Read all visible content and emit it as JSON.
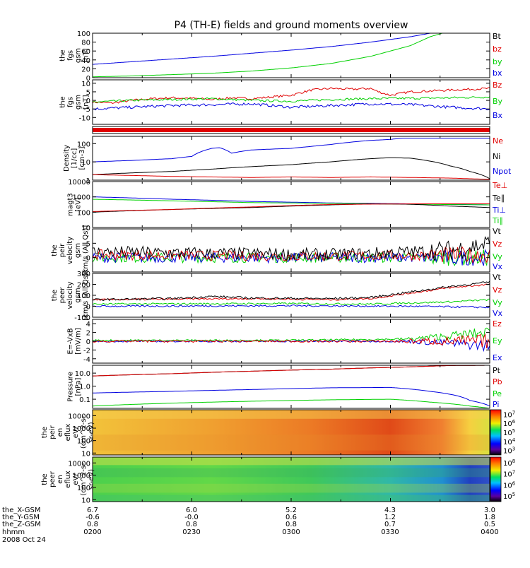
{
  "title": "P4 (TH-E) fields and ground moments overview",
  "footer": {
    "rows": [
      {
        "label": "the_X-GSM",
        "values": [
          "6.7",
          "6.0",
          "5.2",
          "4.3",
          "3.0"
        ]
      },
      {
        "label": "the_Y-GSM",
        "values": [
          "-0.6",
          "-0.0",
          "0.6",
          "1.2",
          "1.8"
        ]
      },
      {
        "label": "the_Z-GSM",
        "values": [
          "0.8",
          "0.8",
          "0.8",
          "0.7",
          "0.5"
        ]
      },
      {
        "label": "hhmm",
        "values": [
          "0200",
          "0230",
          "0300",
          "0330",
          "0400"
        ]
      }
    ],
    "date": "2008 Oct 24"
  },
  "colors": {
    "black": "#000000",
    "red": "#e00000",
    "green": "#00d000",
    "blue": "#0000e0"
  },
  "chart_data": [
    {
      "type": "line",
      "ylabel": [
        "the",
        "fgs",
        "gsm",
        "[nT]"
      ],
      "ylim": [
        0,
        100
      ],
      "yticks": [
        "0",
        "20",
        "40",
        "60",
        "80",
        "100"
      ],
      "legend": [
        {
          "text": "Bt",
          "color": "black"
        },
        {
          "text": "bz",
          "color": "red"
        },
        {
          "text": "by",
          "color": "green"
        },
        {
          "text": "bx",
          "color": "blue"
        }
      ],
      "series": [
        {
          "color": "blue",
          "x": [
            0,
            0.1,
            0.2,
            0.3,
            0.4,
            0.5,
            0.6,
            0.7,
            0.8,
            0.85,
            0.9,
            1.0
          ],
          "y": [
            30,
            36,
            42,
            48,
            55,
            62,
            70,
            80,
            92,
            100,
            100,
            100
          ]
        },
        {
          "color": "green",
          "x": [
            0,
            0.1,
            0.2,
            0.3,
            0.4,
            0.5,
            0.6,
            0.7,
            0.8,
            0.85,
            0.88
          ],
          "y": [
            2,
            4,
            7,
            10,
            15,
            22,
            32,
            48,
            72,
            92,
            100
          ]
        }
      ]
    },
    {
      "type": "line",
      "ylabel": [
        "the",
        "fgs",
        "gsm",
        "[nT]"
      ],
      "ylim": [
        -14,
        12
      ],
      "yticks": [
        "-10",
        "-5",
        "0",
        "5",
        "10"
      ],
      "ytick_values": [
        -10,
        -5,
        0,
        5,
        10
      ],
      "legend": [
        {
          "text": "Bz",
          "color": "red"
        },
        {
          "text": "By",
          "color": "green"
        },
        {
          "text": "Bx",
          "color": "blue"
        }
      ],
      "series": [
        {
          "color": "red",
          "x": [
            0,
            0.05,
            0.1,
            0.15,
            0.2,
            0.25,
            0.3,
            0.35,
            0.4,
            0.45,
            0.5,
            0.55,
            0.6,
            0.65,
            0.7,
            0.72,
            0.75,
            0.8,
            0.85,
            0.9,
            0.95,
            1.0
          ],
          "y": [
            -1,
            -1.5,
            0,
            1,
            1.5,
            1.2,
            0.5,
            1.5,
            1,
            2,
            3,
            6,
            7,
            6.5,
            7,
            5,
            3,
            5,
            5.5,
            6,
            6.5,
            7
          ]
        },
        {
          "color": "green",
          "x": [
            0,
            0.1,
            0.2,
            0.3,
            0.4,
            0.5,
            0.6,
            0.7,
            0.8,
            0.9,
            1.0
          ],
          "y": [
            -1,
            0,
            0.5,
            1,
            0,
            -0.5,
            0.5,
            1,
            1.2,
            1.5,
            2
          ]
        },
        {
          "color": "blue",
          "x": [
            0,
            0.1,
            0.2,
            0.3,
            0.4,
            0.5,
            0.6,
            0.7,
            0.8,
            0.9,
            1.0
          ],
          "y": [
            -5,
            -4,
            -3,
            -2.5,
            -2,
            -4,
            -3,
            -2,
            -2.5,
            -4,
            -5
          ]
        }
      ],
      "noise": 0.8
    },
    {
      "type": "bar",
      "ylabel": [],
      "band_color": "red"
    },
    {
      "type": "line",
      "scale": "log",
      "ylabel": [
        "Density",
        "[1/cc]",
        "[cm-3]"
      ],
      "ylim": [
        1,
        250
      ],
      "yticks": [
        "1",
        "10",
        "100"
      ],
      "ytick_values": [
        1,
        10,
        100
      ],
      "legend": [
        {
          "text": "Ne",
          "color": "red"
        },
        {
          "text": "Ni",
          "color": "black"
        },
        {
          "text": "Npot",
          "color": "blue"
        }
      ],
      "series": [
        {
          "color": "blue",
          "x": [
            0,
            0.1,
            0.2,
            0.25,
            0.3,
            0.32,
            0.35,
            0.4,
            0.45,
            0.5,
            0.55,
            0.6,
            0.65,
            0.7,
            0.75,
            0.78
          ],
          "y": [
            10,
            12,
            15,
            20,
            55,
            60,
            30,
            45,
            50,
            55,
            70,
            90,
            120,
            150,
            170,
            200
          ]
        },
        {
          "color": "black",
          "x": [
            0,
            0.1,
            0.2,
            0.3,
            0.4,
            0.5,
            0.6,
            0.7,
            0.75,
            0.8,
            0.85,
            0.9,
            0.95,
            1.0
          ],
          "y": [
            2,
            2.5,
            3,
            4,
            5.5,
            7,
            10,
            15,
            17,
            16,
            11,
            6,
            3,
            1.2
          ]
        },
        {
          "color": "red",
          "x": [
            0,
            0.1,
            0.2,
            0.3,
            0.4,
            0.5,
            0.6,
            0.7,
            0.8,
            0.9,
            1.0
          ],
          "y": [
            2,
            1.8,
            1.6,
            1.5,
            1.4,
            1.5,
            1.4,
            1.5,
            1.4,
            1.3,
            1.1
          ]
        }
      ]
    },
    {
      "type": "line",
      "scale": "log",
      "ylabel": [
        "magt3",
        "[eV]"
      ],
      "ylim": [
        10,
        10000
      ],
      "yticks": [
        "10",
        "100",
        "1000",
        "10000"
      ],
      "ytick_values": [
        10,
        100,
        1000,
        10000
      ],
      "legend": [
        {
          "text": "Te⊥",
          "color": "red"
        },
        {
          "text": "Te∥",
          "color": "black"
        },
        {
          "text": "Ti⊥",
          "color": "blue"
        },
        {
          "text": "Ti∥",
          "color": "green"
        }
      ],
      "series": [
        {
          "color": "blue",
          "x": [
            0,
            0.2,
            0.4,
            0.6,
            0.8,
            1.0
          ],
          "y": [
            1000,
            700,
            500,
            400,
            350,
            300
          ]
        },
        {
          "color": "green",
          "x": [
            0,
            0.2,
            0.4,
            0.6,
            0.8,
            1.0
          ],
          "y": [
            700,
            550,
            420,
            380,
            330,
            300
          ]
        },
        {
          "color": "black",
          "x": [
            0,
            0.2,
            0.4,
            0.6,
            0.7,
            0.8,
            0.9,
            1.0
          ],
          "y": [
            100,
            150,
            200,
            300,
            350,
            330,
            250,
            200
          ]
        },
        {
          "color": "red",
          "x": [
            0,
            0.2,
            0.4,
            0.6,
            0.8,
            1.0
          ],
          "y": [
            110,
            150,
            220,
            320,
            350,
            350
          ]
        }
      ]
    },
    {
      "type": "line",
      "ylabel": [
        "the",
        "peir",
        "velocity",
        "gsm",
        "[km/s (All Qs)]"
      ],
      "ylim": [
        -5,
        10
      ],
      "yticks": [
        "0",
        "5"
      ],
      "ytick_values": [
        0,
        5
      ],
      "legend": [
        {
          "text": "Vt",
          "color": "black"
        },
        {
          "text": "Vz",
          "color": "red"
        },
        {
          "text": "Vy",
          "color": "green"
        },
        {
          "text": "Vx",
          "color": "blue"
        }
      ],
      "series": [
        {
          "color": "green",
          "x": [
            0,
            0.5,
            1.0
          ],
          "y": [
            0,
            0,
            0
          ]
        },
        {
          "color": "blue",
          "x": [
            0,
            0.5,
            1.0
          ],
          "y": [
            0,
            0,
            0
          ]
        },
        {
          "color": "red",
          "x": [
            0,
            0.5,
            1.0
          ],
          "y": [
            1,
            0.5,
            1
          ]
        },
        {
          "color": "black",
          "x": [
            0,
            0.3,
            0.6,
            0.9,
            1.0
          ],
          "y": [
            2,
            1.5,
            1,
            2.5,
            5
          ]
        }
      ],
      "noise": 2.2
    },
    {
      "type": "line",
      "ylabel": [
        "the",
        "peer",
        "velocity",
        "gsm",
        "[km/s (All Qs)]"
      ],
      "ylim": [
        -100,
        300
      ],
      "yticks": [
        "-100",
        "0",
        "100",
        "200",
        "300"
      ],
      "ytick_values": [
        -100,
        0,
        100,
        200,
        300
      ],
      "legend": [
        {
          "text": "Vt",
          "color": "black"
        },
        {
          "text": "Vz",
          "color": "red"
        },
        {
          "text": "Vy",
          "color": "green"
        },
        {
          "text": "Vx",
          "color": "blue"
        }
      ],
      "series": [
        {
          "color": "green",
          "x": [
            0,
            0.5,
            0.7,
            0.8,
            0.9,
            1.0
          ],
          "y": [
            20,
            25,
            20,
            30,
            40,
            60
          ]
        },
        {
          "color": "blue",
          "x": [
            0,
            0.5,
            0.8,
            1.0
          ],
          "y": [
            0,
            5,
            0,
            -10
          ]
        },
        {
          "color": "red",
          "x": [
            0,
            0.2,
            0.4,
            0.6,
            0.7,
            0.8,
            0.9,
            1.0
          ],
          "y": [
            60,
            65,
            70,
            60,
            70,
            120,
            170,
            200
          ]
        },
        {
          "color": "black",
          "x": [
            0,
            0.2,
            0.3,
            0.4,
            0.6,
            0.7,
            0.8,
            0.9,
            1.0
          ],
          "y": [
            60,
            70,
            90,
            75,
            70,
            80,
            130,
            180,
            220
          ]
        }
      ],
      "noise": 10
    },
    {
      "type": "line",
      "ylabel": [
        "E=-VxB",
        "[mV/m]"
      ],
      "ylim": [
        -5,
        5
      ],
      "yticks": [
        "-4",
        "-2",
        "0",
        "2",
        "4"
      ],
      "ytick_values": [
        -4,
        -2,
        0,
        2,
        4
      ],
      "legend": [
        {
          "text": "Ez",
          "color": "red"
        },
        {
          "text": "Ey",
          "color": "green"
        },
        {
          "text": "Ex",
          "color": "blue"
        }
      ],
      "series": [
        {
          "color": "blue",
          "x": [
            0,
            0.5,
            0.8,
            1.0
          ],
          "y": [
            0,
            0,
            0,
            -1
          ]
        },
        {
          "color": "green",
          "x": [
            0,
            0.5,
            0.8,
            1.0
          ],
          "y": [
            0.2,
            0.2,
            0.5,
            2
          ]
        },
        {
          "color": "red",
          "x": [
            0,
            0.5,
            0.8,
            1.0
          ],
          "y": [
            0,
            0,
            0,
            0
          ]
        }
      ],
      "noise": 0.25
    },
    {
      "type": "line",
      "scale": "log",
      "ylabel": [
        "Pressure",
        "[nPa]"
      ],
      "ylim": [
        0.02,
        40
      ],
      "yticks": [
        "0.1",
        "1.0",
        "10.0"
      ],
      "ytick_values": [
        0.1,
        1,
        10
      ],
      "legend": [
        {
          "text": "Pt",
          "color": "black"
        },
        {
          "text": "Pb",
          "color": "red"
        },
        {
          "text": "Pe",
          "color": "green"
        },
        {
          "text": "Pi",
          "color": "blue"
        }
      ],
      "series": [
        {
          "color": "black",
          "x": [
            0,
            0.2,
            0.4,
            0.6,
            0.8,
            0.9,
            1.0
          ],
          "y": [
            6,
            9,
            14,
            20,
            30,
            38,
            40
          ]
        },
        {
          "color": "red",
          "x": [
            0,
            0.2,
            0.4,
            0.6,
            0.8,
            0.9,
            1.0
          ],
          "y": [
            6,
            9,
            14,
            20,
            30,
            38,
            40
          ]
        },
        {
          "color": "blue",
          "x": [
            0,
            0.2,
            0.4,
            0.6,
            0.75,
            0.85,
            0.95,
            1.0
          ],
          "y": [
            0.3,
            0.4,
            0.55,
            0.75,
            0.8,
            0.4,
            0.08,
            0.03
          ]
        },
        {
          "color": "green",
          "x": [
            0,
            0.2,
            0.4,
            0.6,
            0.75,
            0.85,
            0.95,
            1.0
          ],
          "y": [
            0.03,
            0.05,
            0.07,
            0.09,
            0.1,
            0.06,
            0.03,
            0.02
          ]
        }
      ]
    },
    {
      "type": "heatmap",
      "ylabel": [
        "the",
        "peir",
        "en",
        "eflux",
        "eV/",
        "(cm^2-s-",
        "sr-eV)"
      ],
      "yticks": [
        "10",
        "100",
        "1000",
        "10000"
      ],
      "colorbar_ticks": [
        "10^3",
        "10^4",
        "10^5",
        "10^6",
        "10^7"
      ],
      "colormap_range": [
        1000,
        10000000
      ],
      "description": "ion energy flux spectrogram"
    },
    {
      "type": "heatmap",
      "ylabel": [
        "the",
        "peer",
        "en",
        "eflux",
        "eV/",
        "(cm^2-s-",
        "sr-eV)"
      ],
      "yticks": [
        "10",
        "100",
        "1000",
        "10000"
      ],
      "colorbar_ticks": [
        "10^5",
        "10^6",
        "10^7",
        "10^8"
      ],
      "colormap_range": [
        100000,
        100000000
      ],
      "description": "electron energy flux spectrogram"
    }
  ]
}
